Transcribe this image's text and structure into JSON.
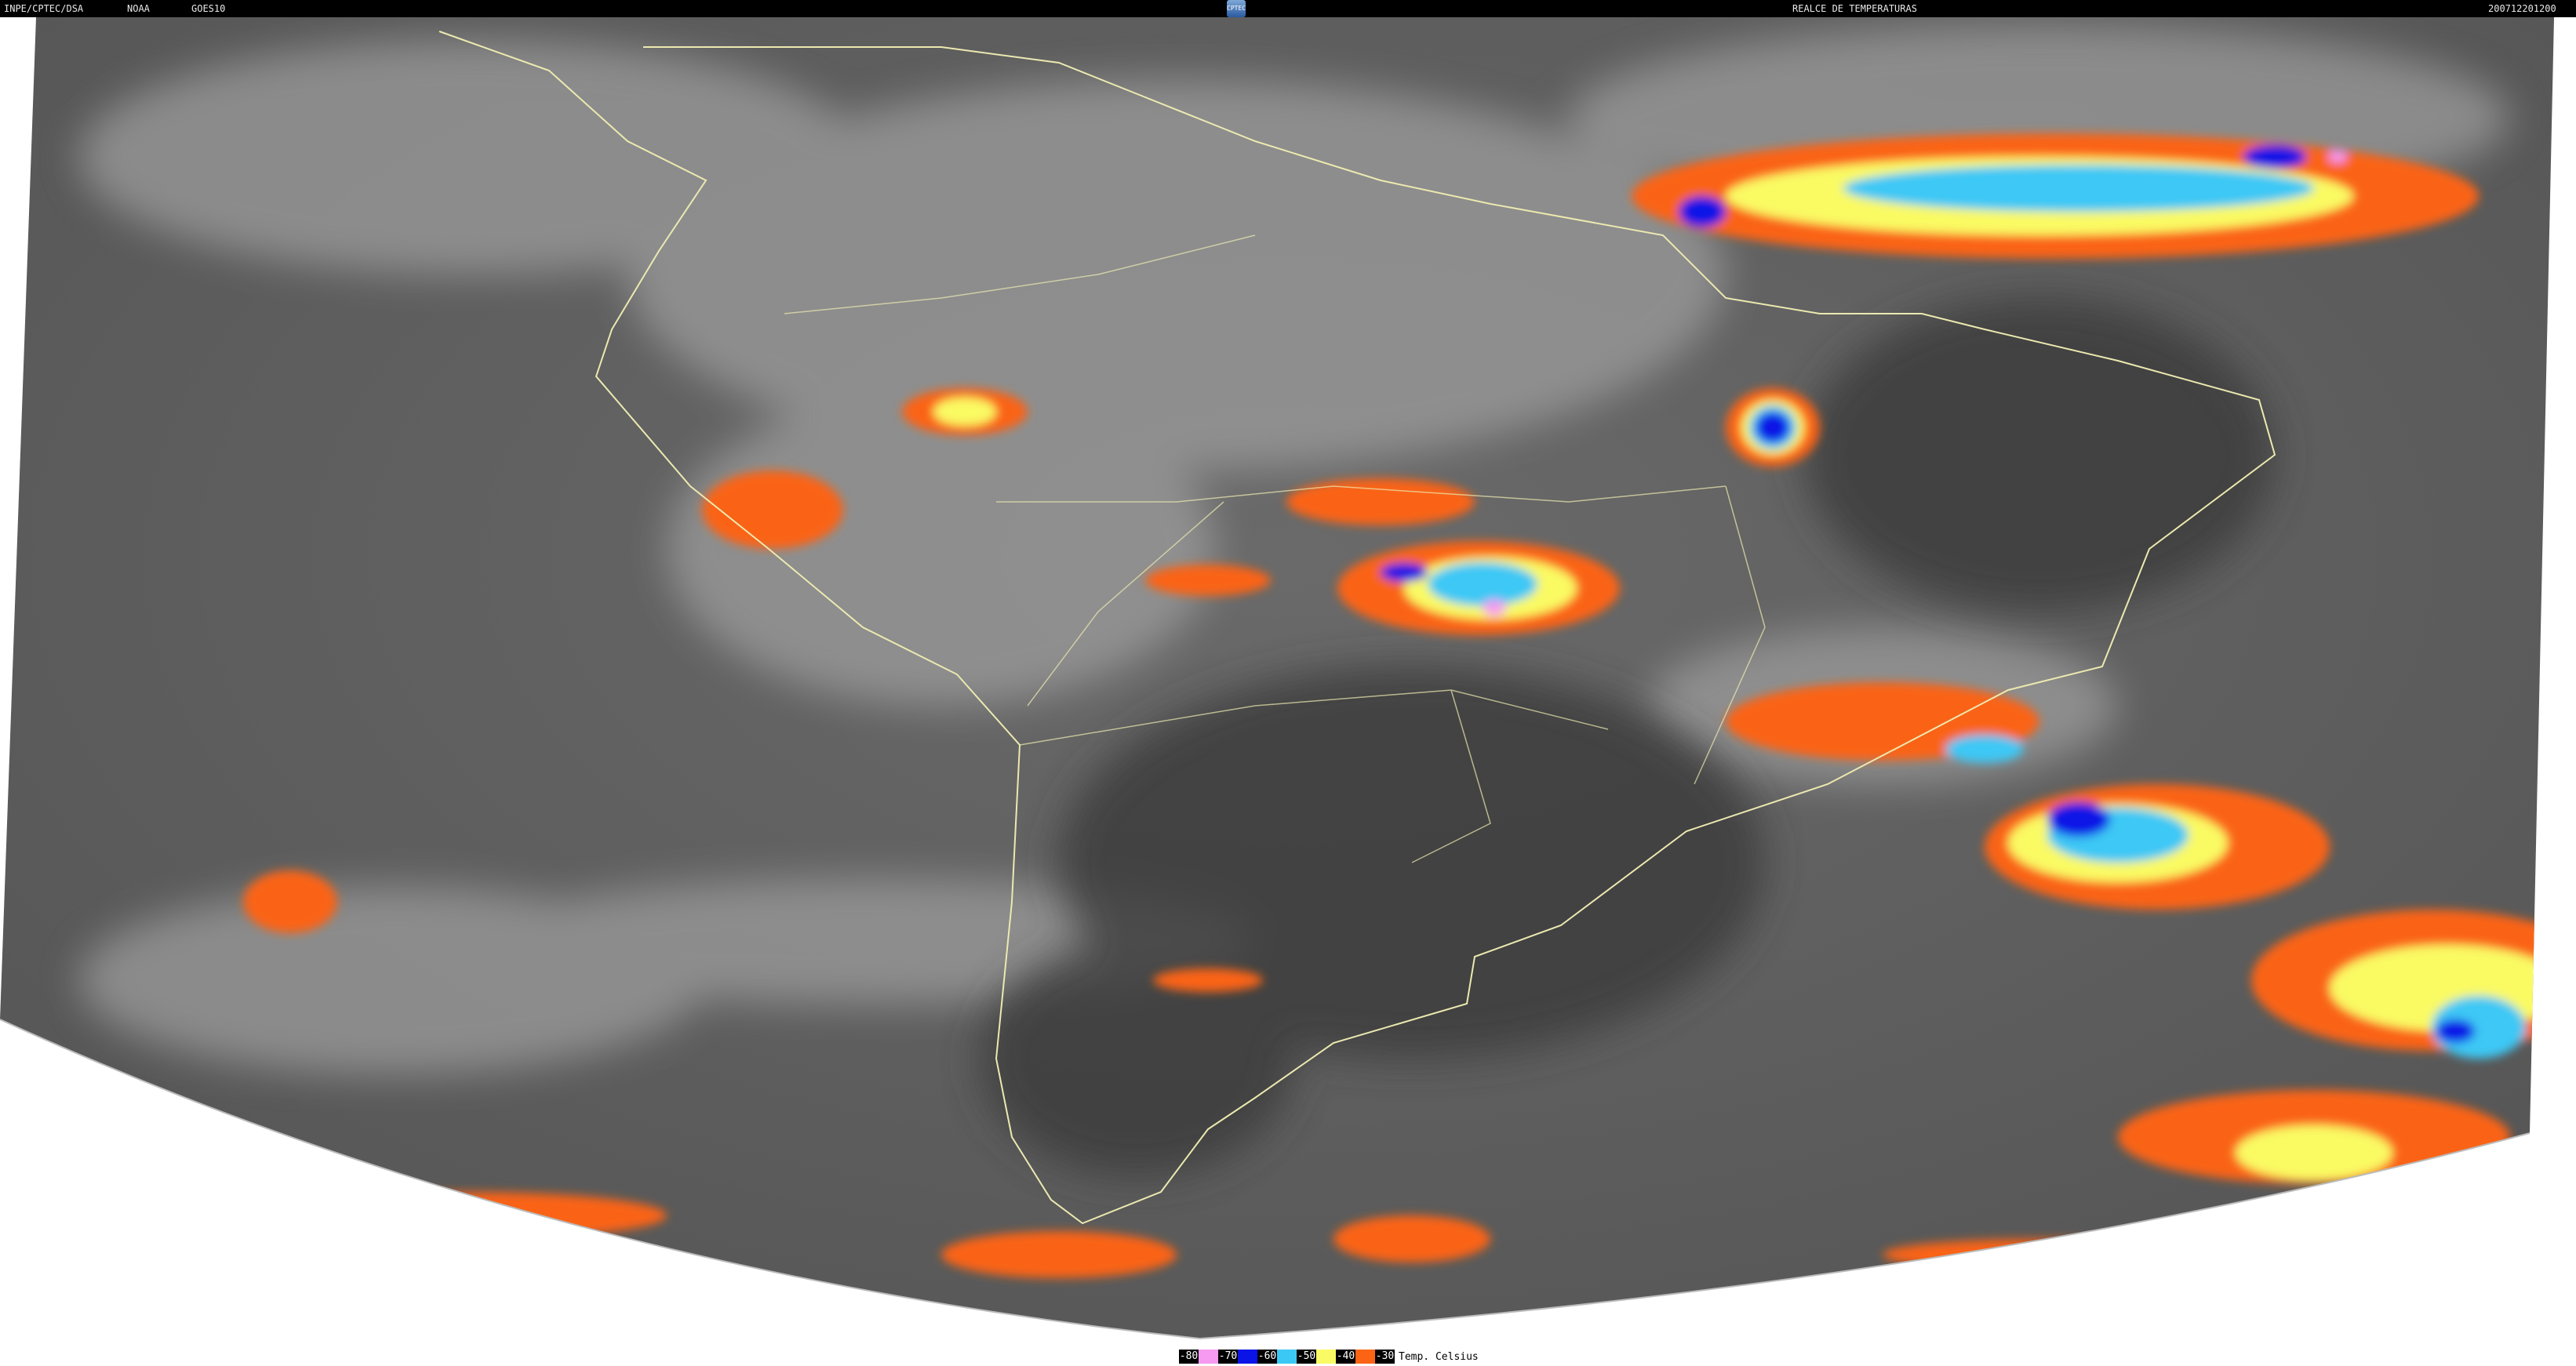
{
  "header": {
    "agency": "INPE/CPTEC/DSA",
    "source": "NOAA",
    "satellite": "GOES10",
    "logo_text": "CPTEC",
    "product": "REALCE DE TEMPERATURAS",
    "datetime": "200712201200"
  },
  "legend": {
    "items": [
      {
        "label": "-80",
        "color": "#f59af0"
      },
      {
        "label": "-70",
        "color": "#0a14e6"
      },
      {
        "label": "-60",
        "color": "#3cc8f5"
      },
      {
        "label": "-50",
        "color": "#fafa64"
      },
      {
        "label": "-40",
        "color": "#fa6414"
      },
      {
        "label": "-30",
        "color": "#000000"
      }
    ],
    "unit": "Temp. Celsius"
  }
}
